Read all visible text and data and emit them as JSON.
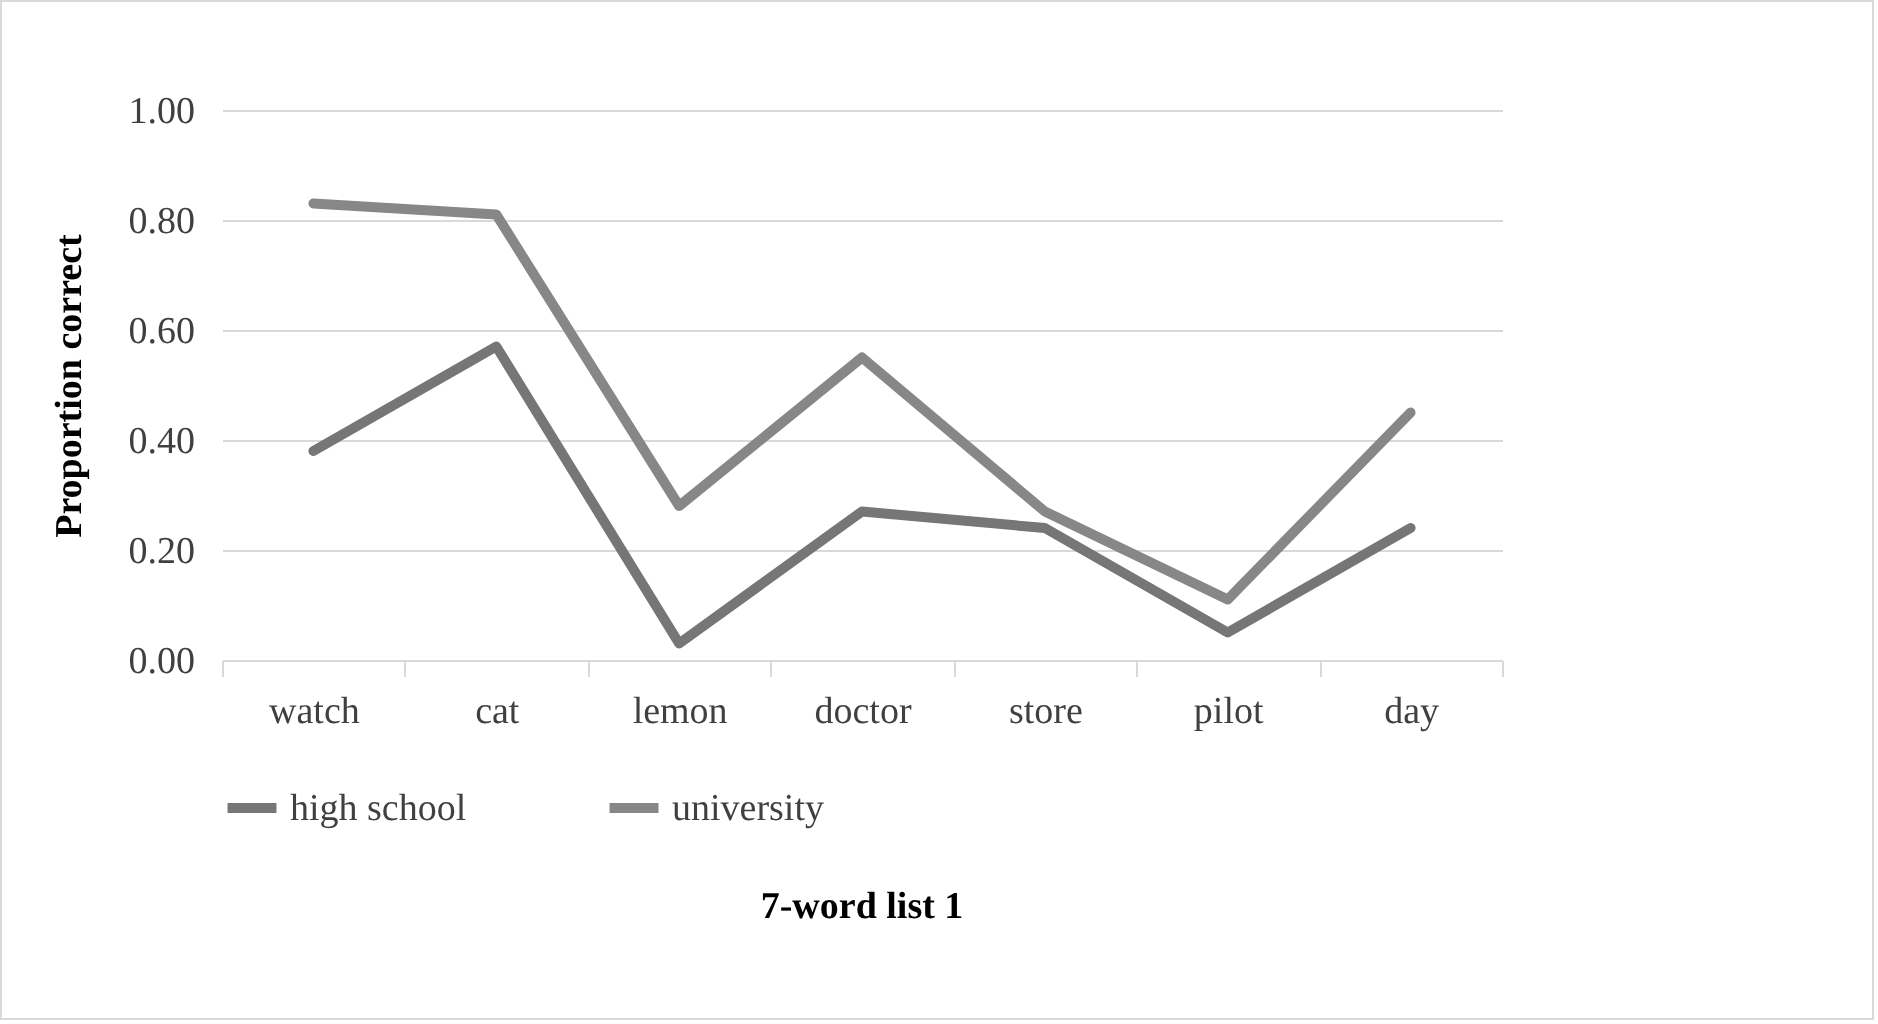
{
  "chart_data": {
    "type": "line",
    "xlabel": "7-word list 1",
    "ylabel": "Proportion correct",
    "categories": [
      "watch",
      "cat",
      "lemon",
      "doctor",
      "store",
      "pilot",
      "day"
    ],
    "series": [
      {
        "name": "high school",
        "color": "#767676",
        "values": [
          0.38,
          0.57,
          0.03,
          0.27,
          0.24,
          0.05,
          0.24
        ]
      },
      {
        "name": "university",
        "color": "#878787",
        "values": [
          0.83,
          0.81,
          0.28,
          0.55,
          0.27,
          0.11,
          0.45
        ]
      }
    ],
    "ylim": [
      0,
      1
    ],
    "yticks": [
      {
        "value": 0,
        "label": "0.00"
      },
      {
        "value": 0.2,
        "label": "0.20"
      },
      {
        "value": 0.4,
        "label": "0.40"
      },
      {
        "value": 0.6,
        "label": "0.60"
      },
      {
        "value": 0.8,
        "label": "0.80"
      },
      {
        "value": 1,
        "label": "1.00"
      }
    ],
    "grid": "y",
    "legend": "bottom",
    "marker": "none",
    "line_style": "solid"
  }
}
